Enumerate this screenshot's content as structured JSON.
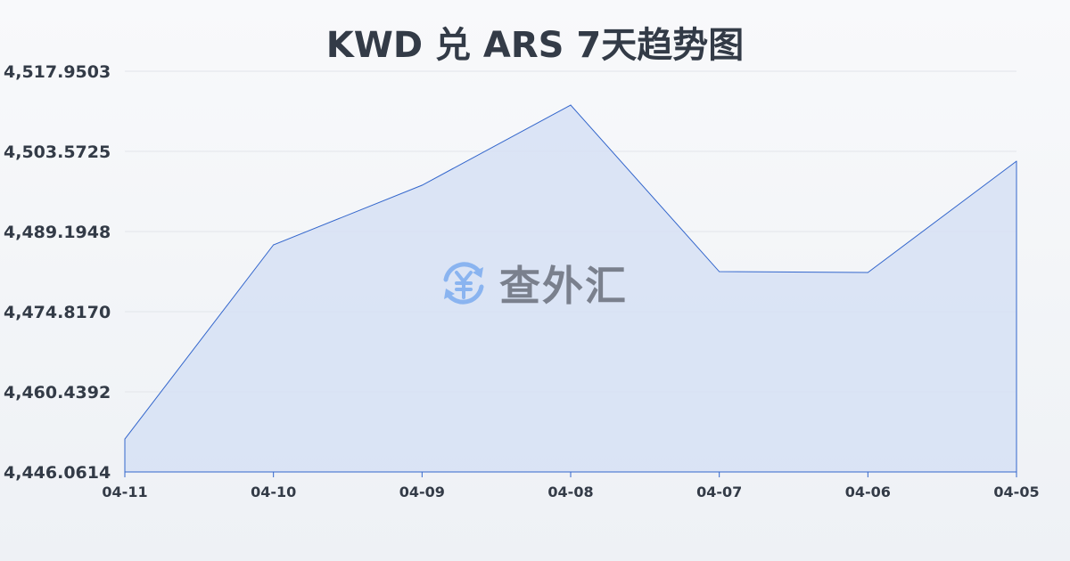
{
  "chart_data": {
    "type": "area",
    "title": "KWD 兑 ARS 7天趋势图",
    "xlabel": "",
    "ylabel": "",
    "categories": [
      "04-11",
      "04-10",
      "04-09",
      "04-08",
      "04-07",
      "04-06",
      "04-05"
    ],
    "values": [
      4451.97,
      4486.8,
      4497.5,
      4511.88,
      4482.0,
      4481.85,
      4501.81
    ],
    "yticks": [
      "4,446.0614",
      "4,460.4392",
      "4,474.8170",
      "4,489.1948",
      "4,503.5725",
      "4,517.9503"
    ],
    "ylim": [
      4446.0614,
      4517.9503
    ],
    "grid": true,
    "legend": "none",
    "line_color": "#3366cc",
    "fill_color": "#d6e0f5"
  },
  "watermark": {
    "text": "查外汇",
    "icon": "yen-exchange-icon",
    "icon_color": "#8ab4f0"
  }
}
